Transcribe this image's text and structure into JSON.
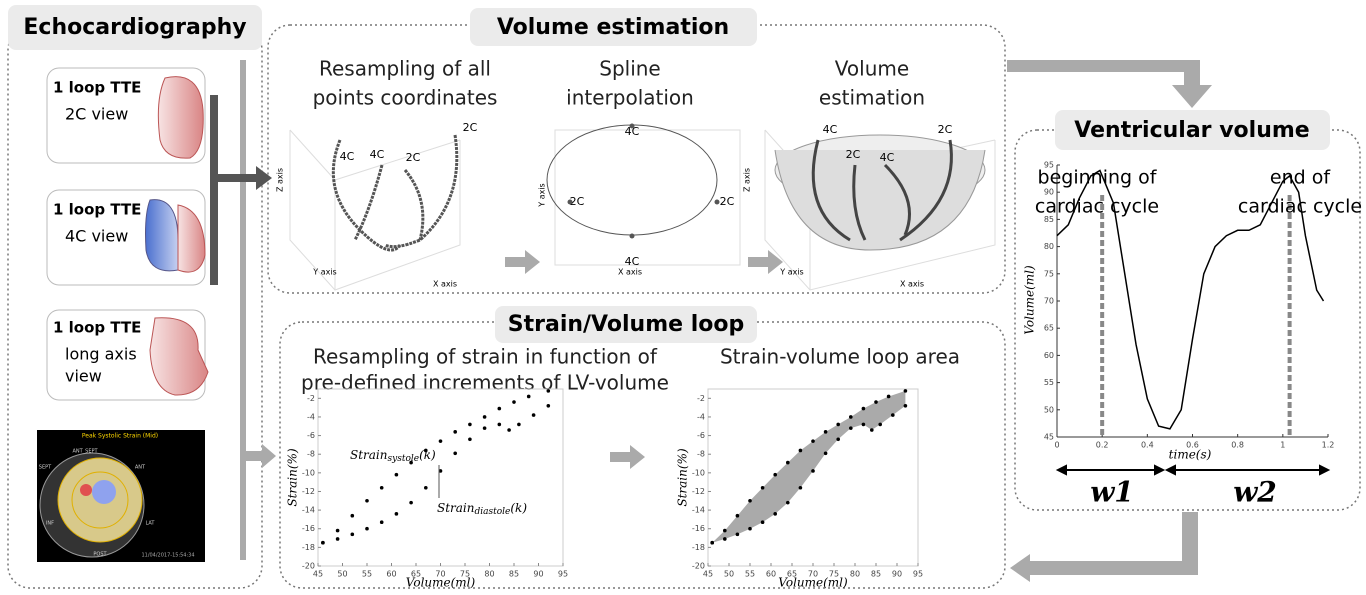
{
  "echo": {
    "title": "Echocardiography",
    "cards": [
      {
        "label": "1 loop TTE",
        "view_lines": [
          "2C view"
        ]
      },
      {
        "label": "1 loop TTE",
        "view_lines": [
          "4C view"
        ]
      },
      {
        "label": "1 loop TTE",
        "view_lines": [
          "long axis",
          "view"
        ]
      }
    ],
    "bullseye": {
      "title": "Peak Systolic Strain (Mid)",
      "segments": [
        "ANT_SEPT",
        "ANT",
        "LAT",
        "POST",
        "INF",
        "SEPT"
      ],
      "timestamp": "11/04/2017-15:54:34"
    }
  },
  "volume_estimation": {
    "title": "Volume estimation",
    "steps": [
      {
        "title_lines": [
          "Resampling of all",
          "points coordinates"
        ],
        "x_label": "X axis",
        "y_label": "Y axis",
        "z_label": "Z axis",
        "curve_labels": [
          "4C",
          "2C",
          "4C",
          "2C"
        ]
      },
      {
        "title_lines": [
          "Spline",
          "interpolation"
        ],
        "x_label": "X axis",
        "y_label": "Y axis",
        "point_labels": [
          "4C",
          "2C",
          "2C",
          "4C"
        ]
      },
      {
        "title_lines": [
          "Volume",
          "estimation"
        ],
        "x_label": "X axis",
        "y_label": "Y axis",
        "z_label": "Z axis",
        "curve_labels": [
          "4C",
          "2C",
          "2C",
          "4C"
        ]
      }
    ]
  },
  "strain_volume_loop": {
    "title": "Strain/Volume loop",
    "plots": [
      {
        "type": "scatter",
        "title_lines": [
          "Resampling of strain in function of",
          "pre-defined increments of LV-volume"
        ],
        "x_label": "Volume(ml)",
        "y_label": "Strain(%)",
        "xlim": [
          45,
          95
        ],
        "xticks": [
          45,
          50,
          55,
          60,
          65,
          70,
          75,
          80,
          85,
          90,
          95
        ],
        "ylim": [
          -20,
          -1
        ],
        "yticks": [
          -2,
          -4,
          -6,
          -8,
          -10,
          -12,
          -14,
          -16,
          -18,
          -20
        ],
        "series": [
          {
            "x": [
              46,
              49,
              52,
              55,
              58,
              61,
              64,
              67,
              70,
              73,
              76,
              79,
              82,
              85,
              88,
              92
            ],
            "values": [
              -17.5,
              -16.2,
              -14.6,
              -13,
              -11.6,
              -10.2,
              -8.9,
              -7.6,
              -6.6,
              -5.6,
              -4.8,
              -4,
              -3.1,
              -2.4,
              -1.8,
              -1.2
            ]
          },
          {
            "x": [
              46,
              49,
              52,
              55,
              58,
              61,
              64,
              67,
              70,
              73,
              76,
              79,
              82,
              84,
              86,
              89,
              92
            ],
            "values": [
              -17.5,
              -17.1,
              -16.6,
              -16,
              -15.3,
              -14.4,
              -13.2,
              -11.6,
              -9.8,
              -7.9,
              -6.4,
              -5.2,
              -4.8,
              -5.4,
              -4.8,
              -3.8,
              -2.8
            ]
          }
        ],
        "annotations": [
          {
            "base": "Strain",
            "sub": "systole",
            "suffix": "(k)"
          },
          {
            "base": "Strain",
            "sub": "diastole",
            "suffix": "(k)"
          }
        ]
      },
      {
        "type": "area",
        "title_lines": [
          "Strain-volume loop area"
        ],
        "x_label": "Volume(ml)",
        "y_label": "Strain(%)",
        "xlim": [
          45,
          95
        ],
        "xticks": [
          45,
          50,
          55,
          60,
          65,
          70,
          75,
          80,
          85,
          90,
          95
        ],
        "ylim": [
          -20,
          -1
        ],
        "yticks": [
          -2,
          -4,
          -6,
          -8,
          -10,
          -12,
          -14,
          -16,
          -18,
          -20
        ],
        "series": [
          {
            "x": [
              46,
              49,
              52,
              55,
              58,
              61,
              64,
              67,
              70,
              73,
              76,
              79,
              82,
              85,
              88,
              92
            ],
            "values": [
              -17.5,
              -16.2,
              -14.6,
              -13,
              -11.6,
              -10.2,
              -8.9,
              -7.6,
              -6.6,
              -5.6,
              -4.8,
              -4,
              -3.1,
              -2.4,
              -1.8,
              -1.2
            ]
          },
          {
            "x": [
              46,
              49,
              52,
              55,
              58,
              61,
              64,
              67,
              70,
              73,
              76,
              79,
              82,
              84,
              86,
              89,
              92
            ],
            "values": [
              -17.5,
              -17.1,
              -16.6,
              -16,
              -15.3,
              -14.4,
              -13.2,
              -11.6,
              -9.8,
              -7.9,
              -6.4,
              -5.2,
              -4.8,
              -5.4,
              -4.8,
              -3.8,
              -2.8
            ]
          }
        ]
      }
    ]
  },
  "ventricular_volume": {
    "title": "Ventricular volume",
    "chart": {
      "type": "line",
      "color": "#000000",
      "x": [
        0,
        0.05,
        0.1,
        0.15,
        0.19,
        0.25,
        0.3,
        0.35,
        0.4,
        0.45,
        0.5,
        0.55,
        0.6,
        0.65,
        0.7,
        0.75,
        0.8,
        0.85,
        0.9,
        0.95,
        1.0,
        1.03,
        1.07,
        1.1,
        1.15,
        1.18
      ],
      "values": [
        82,
        84,
        89,
        93,
        94,
        88,
        75,
        62,
        52,
        47,
        46.5,
        50,
        63,
        75,
        80,
        82,
        83,
        83,
        84,
        88,
        92,
        93,
        90,
        82,
        72,
        70
      ],
      "xlim": [
        0,
        1.2
      ],
      "xticks": [
        0,
        0.2,
        0.4,
        0.6,
        0.8,
        1,
        1.2
      ],
      "ylim": [
        45,
        95
      ],
      "yticks": [
        45,
        50,
        55,
        60,
        65,
        70,
        75,
        80,
        85,
        90,
        95
      ],
      "x_label": "time(s)",
      "y_label": "Volume(ml)",
      "cycle_marks": [
        0.2,
        1.03
      ]
    },
    "labels": [
      {
        "lines": [
          "beginning of",
          "cardiac cycle"
        ]
      },
      {
        "lines": [
          "end of",
          "cardiac cycle"
        ]
      }
    ],
    "windows": [
      "w1",
      "w2"
    ]
  }
}
